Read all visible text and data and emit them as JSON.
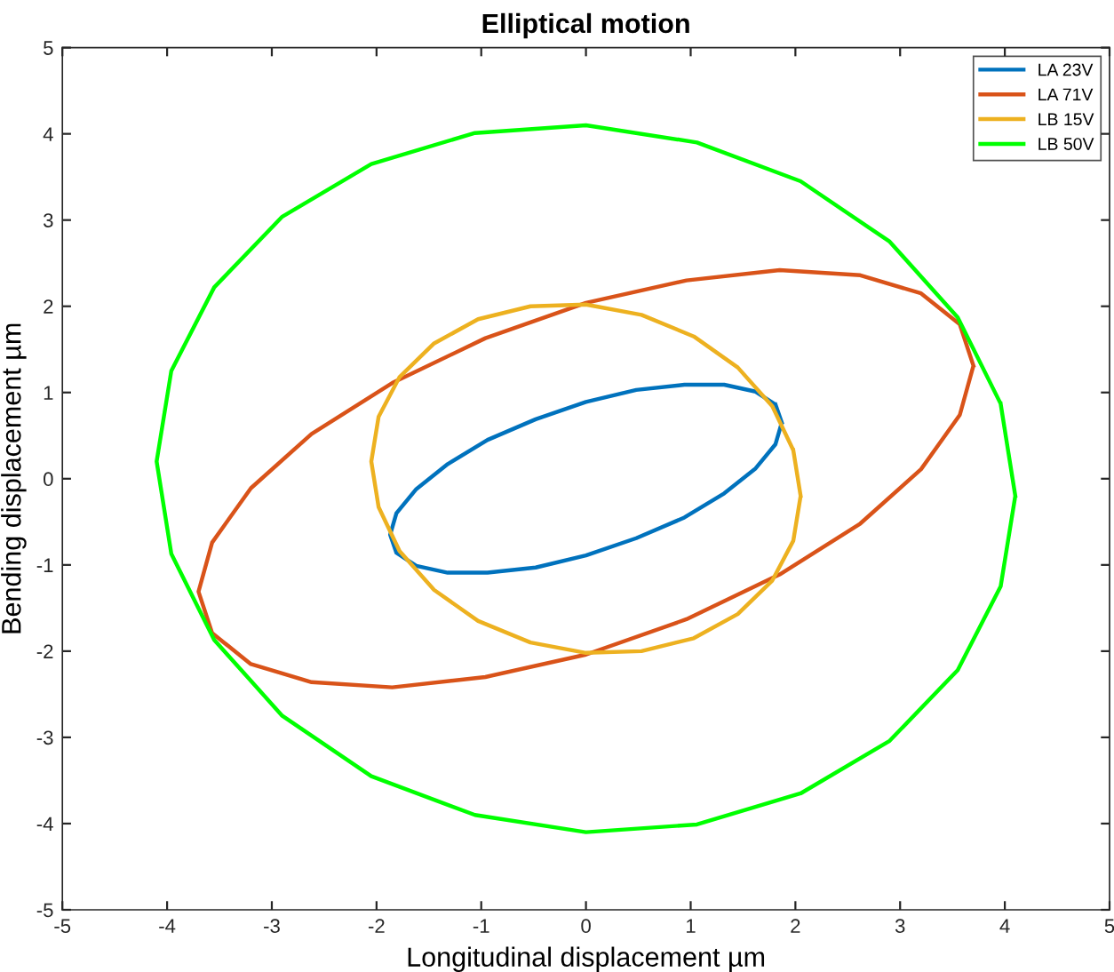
{
  "chart_data": {
    "type": "line",
    "title": "Elliptical motion",
    "xlabel": "Longitudinal displacement µm",
    "ylabel": "Bending displacement µm",
    "xlim": [
      -5,
      5
    ],
    "ylim": [
      -5,
      5
    ],
    "xticks": [
      -5,
      -4,
      -3,
      -2,
      -1,
      0,
      1,
      2,
      3,
      4,
      5
    ],
    "yticks": [
      -5,
      -4,
      -3,
      -2,
      -1,
      0,
      1,
      2,
      3,
      4,
      5
    ],
    "grid": false,
    "legend": "top right",
    "marker": "none",
    "line_style": "solid",
    "series": [
      {
        "name": "LA 23V",
        "color": "#0072bd",
        "x": [
          1.87,
          1.81,
          1.62,
          1.32,
          0.94,
          0.48,
          0,
          -0.48,
          -0.94,
          -1.32,
          -1.62,
          -1.81,
          -1.87,
          -1.81,
          -1.62,
          -1.32,
          -0.94,
          -0.48,
          0,
          0.48,
          0.94,
          1.32,
          1.62,
          1.81,
          1.87
        ],
        "values": [
          0.65,
          0.86,
          1.01,
          1.09,
          1.09,
          1.03,
          0.89,
          0.69,
          0.45,
          0.17,
          -0.12,
          -0.4,
          -0.65,
          -0.86,
          -1.01,
          -1.09,
          -1.09,
          -1.03,
          -0.89,
          -0.69,
          -0.45,
          -0.17,
          0.12,
          0.4,
          0.65
        ]
      },
      {
        "name": "LA 71V",
        "color": "#d95319",
        "x": [
          3.7,
          3.57,
          3.2,
          2.62,
          1.85,
          0.96,
          0,
          -0.96,
          -1.85,
          -2.62,
          -3.2,
          -3.57,
          -3.7,
          -3.57,
          -3.2,
          -2.62,
          -1.85,
          -0.96,
          0,
          0.96,
          1.85,
          2.62,
          3.2,
          3.57,
          3.7
        ],
        "values": [
          1.31,
          1.79,
          2.15,
          2.36,
          2.42,
          2.3,
          2.04,
          1.63,
          1.11,
          0.52,
          -0.11,
          -0.74,
          -1.31,
          -1.79,
          -2.15,
          -2.36,
          -2.42,
          -2.3,
          -2.04,
          -1.63,
          -1.11,
          -0.52,
          0.11,
          0.74,
          1.31
        ]
      },
      {
        "name": "LB 15V",
        "color": "#edb120",
        "x": [
          2.05,
          1.98,
          1.78,
          1.45,
          1.03,
          0.53,
          0,
          -0.53,
          -1.03,
          -1.45,
          -1.78,
          -1.98,
          -2.05,
          -1.98,
          -1.78,
          -1.45,
          -1.03,
          -0.53,
          0,
          0.53,
          1.03,
          1.45,
          1.78,
          1.98,
          2.05
        ],
        "values": [
          -0.2,
          0.33,
          0.84,
          1.29,
          1.65,
          1.9,
          2.02,
          2.0,
          1.85,
          1.57,
          1.18,
          0.72,
          0.2,
          -0.33,
          -0.84,
          -1.29,
          -1.65,
          -1.9,
          -2.02,
          -2.0,
          -1.85,
          -1.57,
          -1.18,
          -0.72,
          -0.2
        ]
      },
      {
        "name": "LB 50V",
        "color": "#00ff00",
        "x": [
          4.1,
          3.96,
          3.55,
          2.9,
          2.05,
          1.06,
          0,
          -1.06,
          -2.05,
          -2.9,
          -3.55,
          -3.96,
          -4.1,
          -3.96,
          -3.55,
          -2.9,
          -2.05,
          -1.06,
          0,
          1.06,
          2.05,
          2.9,
          3.55,
          3.96,
          4.1
        ],
        "values": [
          -0.2,
          0.87,
          1.87,
          2.75,
          3.45,
          3.9,
          4.1,
          4.01,
          3.65,
          3.04,
          2.22,
          1.25,
          0.2,
          -0.87,
          -1.87,
          -2.75,
          -3.45,
          -3.9,
          -4.1,
          -4.01,
          -3.65,
          -3.04,
          -2.22,
          -1.25,
          -0.2
        ]
      }
    ]
  }
}
